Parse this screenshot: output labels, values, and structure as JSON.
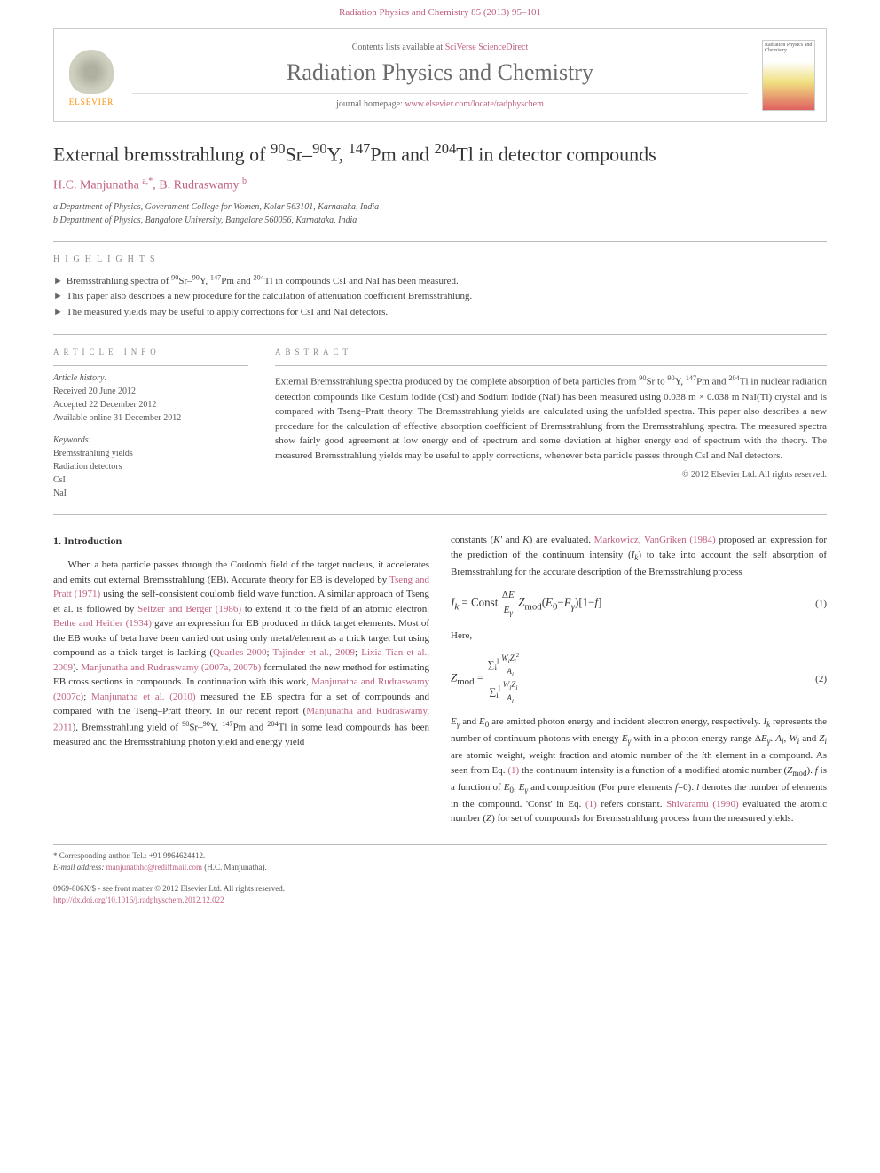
{
  "header": {
    "citation": "Radiation Physics and Chemistry 85 (2013) 95–101",
    "contents_prefix": "Contents lists available at ",
    "contents_link": "SciVerse ScienceDirect",
    "journal_title": "Radiation Physics and Chemistry",
    "homepage_prefix": "journal homepage: ",
    "homepage_link": "www.elsevier.com/locate/radphyschem",
    "publisher": "ELSEVIER",
    "cover_text": "Radiation Physics and Chemistry"
  },
  "article": {
    "title_html": "External bremsstrahlung of <sup>90</sup>Sr–<sup>90</sup>Y, <sup>147</sup>Pm and <sup>204</sup>Tl in detector compounds",
    "authors_html": "H.C. Manjunatha <sup>a,*</sup>, B. Rudraswamy <sup>b</sup>",
    "affiliations": [
      "a Department of Physics, Government College for Women, Kolar 563101, Karnataka, India",
      "b Department of Physics, Bangalore University, Bangalore 560056, Karnataka, India"
    ]
  },
  "highlights": {
    "label": "HIGHLIGHTS",
    "items": [
      "Bremsstrahlung spectra of <sup>90</sup>Sr–<sup>90</sup>Y, <sup>147</sup>Pm and <sup>204</sup>Tl in compounds CsI and NaI has been measured.",
      "This paper also describes a new procedure for the calculation of attenuation coefficient Bremsstrahlung.",
      "The measured yields may be useful to apply corrections for CsI and NaI detectors."
    ]
  },
  "info": {
    "label": "ARTICLE INFO",
    "history_label": "Article history:",
    "history": [
      "Received 20 June 2012",
      "Accepted 22 December 2012",
      "Available online 31 December 2012"
    ],
    "keywords_label": "Keywords:",
    "keywords": [
      "Bremsstrahlung yields",
      "Radiation detectors",
      "CsI",
      "NaI"
    ]
  },
  "abstract": {
    "label": "ABSTRACT",
    "body_html": "External Bremsstrahlung spectra produced by the complete absorption of beta particles from <sup>90</sup>Sr to <sup>90</sup>Y, <sup>147</sup>Pm and <sup>204</sup>Tl in nuclear radiation detection compounds like Cesium iodide (CsI) and Sodium Iodide (NaI) has been measured using 0.038 m × 0.038 m NaI(Tl) crystal and is compared with Tseng–Pratt theory. The Bremsstrahlung yields are calculated using the unfolded spectra. This paper also describes a new procedure for the calculation of effective absorption coefficient of Bremsstrahlung from the Bremsstrahlung spectra. The measured spectra show fairly good agreement at low energy end of spectrum and some deviation at higher energy end of spectrum with the theory. The measured Bremsstrahlung yields may be useful to apply corrections, whenever beta particle passes through CsI and NaI detectors.",
    "copyright": "© 2012 Elsevier Ltd. All rights reserved."
  },
  "body": {
    "section1_heading": "1. Introduction",
    "col1_html": "When a beta particle passes through the Coulomb field of the target nucleus, it accelerates and emits out external Bremsstrahlung (EB). Accurate theory for EB is developed by <span class='ref-link'>Tseng and Pratt (1971)</span> using the self-consistent coulomb field wave function. A similar approach of Tseng et al. is followed by <span class='ref-link'>Seltzer and Berger (1986)</span> to extend it to the field of an atomic electron. <span class='ref-link'>Bethe and Heitler (1934)</span> gave an expression for EB produced in thick target elements. Most of the EB works of beta have been carried out using only metal/element as a thick target but using compound as a thick target is lacking (<span class='ref-link'>Quarles 2000</span>; <span class='ref-link'>Tajinder et al., 2009</span>; <span class='ref-link'>Lixia Tian et al., 2009</span>). <span class='ref-link'>Manjunatha and Rudraswamy (2007a, 2007b)</span> formulated the new method for estimating EB cross sections in compounds. In continuation with this work, <span class='ref-link'>Manjunatha and Rudraswamy (2007c)</span>; <span class='ref-link'>Manjunatha et al. (2010)</span> measured the EB spectra for a set of compounds and compared with the Tseng–Pratt theory. In our recent report (<span class='ref-link'>Manjunatha and Rudraswamy, 2011</span>), Bremsstrahlung yield of <sup>90</sup>Sr–<sup>90</sup>Y, <sup>147</sup>Pm and <sup>204</sup>Tl in some lead compounds has been measured and the Bremsstrahlung photon yield and energy yield",
    "col2_top_html": "constants (<i>K'</i> and <i>K</i>) are evaluated. <span class='ref-link'>Markowicz, VanGriken (1984)</span> proposed an expression for the prediction of the continuum intensity (<i>I<sub>k</sub></i>) to take into account the self absorption of Bremsstrahlung for the accurate description of the Bremsstrahlung process",
    "eq1_num": "(1)",
    "here_label": "Here,",
    "eq2_num": "(2)",
    "col2_bottom_html": "<i>E<sub>γ</sub></i> and <i>E</i><sub>0</sub> are emitted photon energy and incident electron energy, respectively. <i>I<sub>k</sub></i> represents the number of continuum photons with energy <i>E<sub>γ</sub></i> with in a photon energy range Δ<i>E<sub>γ</sub></i>. <i>A<sub>i</sub></i>, <i>W<sub>i</sub></i> and <i>Z<sub>i</sub></i> are atomic weight, weight fraction and atomic number of the <i>i</i>th element in a compound. As seen from Eq. <span class='ref-link'>(1)</span> the continuum intensity is a function of a modified atomic number (<i>Z</i><sub>mod</sub>). <i>f</i> is a function of <i>E</i><sub>0</sub>, <i>E<sub>γ</sub></i> and composition (For pure elements <i>f</i>=0). <i>l</i> denotes the number of elements in the compound. 'Const' in Eq. <span class='ref-link'>(1)</span> refers constant. <span class='ref-link'>Shivaramu (1990)</span> evaluated the atomic number (<i>Z</i>) for set of compounds for Bremsstrahlung process from the measured yields."
  },
  "footer": {
    "corr": "* Corresponding author. Tel.: +91 9964624412.",
    "email_label": "E-mail address:",
    "email": "manjunathhc@rediffmail.com",
    "email_person": "(H.C. Manjunatha).",
    "issn_line": "0969-806X/$ - see front matter © 2012 Elsevier Ltd. All rights reserved.",
    "doi": "http://dx.doi.org/10.1016/j.radphyschem.2012.12.022"
  },
  "colors": {
    "link": "#c06080",
    "orange": "#ff8c00",
    "gray_text": "#6a6a6a"
  }
}
